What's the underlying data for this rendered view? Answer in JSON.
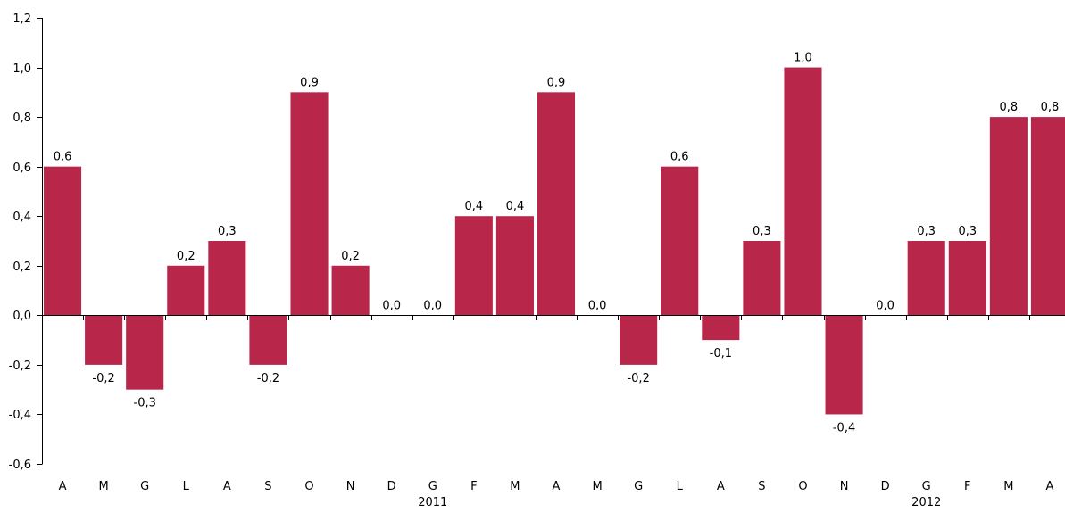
{
  "chart_data": {
    "type": "bar",
    "title": "",
    "xlabel": "",
    "ylabel": "",
    "ylim": [
      -0.6,
      1.2
    ],
    "yticks": [
      "-0,6",
      "-0,4",
      "-0,2",
      "0,0",
      "0,2",
      "0,4",
      "0,6",
      "0,8",
      "1,0",
      "1,2"
    ],
    "ytick_values": [
      -0.6,
      -0.4,
      -0.2,
      0.0,
      0.2,
      0.4,
      0.6,
      0.8,
      1.0,
      1.2
    ],
    "categories": [
      "A",
      "M",
      "G",
      "L",
      "A",
      "S",
      "O",
      "N",
      "D",
      "G",
      "F",
      "M",
      "A",
      "M",
      "G",
      "L",
      "A",
      "S",
      "O",
      "N",
      "D",
      "G",
      "F",
      "M",
      "A"
    ],
    "values": [
      0.6,
      -0.2,
      -0.3,
      0.2,
      0.3,
      -0.2,
      0.9,
      0.2,
      0.0,
      0.0,
      0.4,
      0.4,
      0.9,
      0.0,
      -0.2,
      0.6,
      -0.1,
      0.3,
      1.0,
      -0.4,
      0.0,
      0.3,
      0.3,
      0.8,
      0.8
    ],
    "value_labels": [
      "0,6",
      "-0,2",
      "-0,3",
      "0,2",
      "0,3",
      "-0,2",
      "0,9",
      "0,2",
      "0,0",
      "0,0",
      "0,4",
      "0,4",
      "0,9",
      "0,0",
      "-0,2",
      "0,6",
      "-0,1",
      "0,3",
      "1,0",
      "-0,4",
      "0,0",
      "0,3",
      "0,3",
      "0,8",
      "0,8"
    ],
    "year_labels": [
      {
        "text": "2011",
        "category_index": 9
      },
      {
        "text": "2012",
        "category_index": 21
      }
    ],
    "bar_color": "#b8264a",
    "grid": false,
    "legend": "none"
  }
}
